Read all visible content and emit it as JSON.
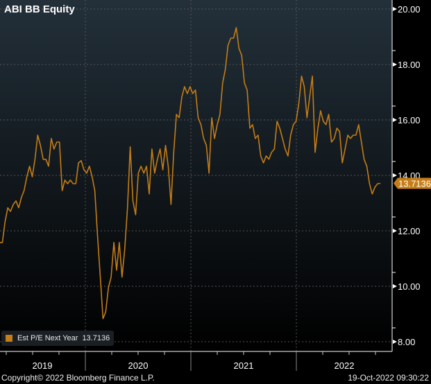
{
  "chart_data": {
    "type": "line",
    "title": "ABI BB Equity",
    "ylim": [
      8,
      20
    ],
    "yticks": [
      "8.00",
      "10.00",
      "12.00",
      "14.00",
      "16.00",
      "18.00",
      "20.00"
    ],
    "xticks": [
      "2019",
      "2020",
      "2021",
      "2022"
    ],
    "start_date": "2019-03-01",
    "end_date": "2022-10-19",
    "grid": true,
    "legend_position": "bottom-left",
    "series": [
      {
        "name": "Est P/E Next Year",
        "last_value_label": "13.7136",
        "color": "#c47d17",
        "values": [
          10.58,
          11.58,
          11.58,
          12.33,
          12.83,
          12.7,
          12.95,
          13.08,
          12.83,
          13.2,
          13.45,
          13.95,
          14.33,
          13.95,
          14.58,
          15.45,
          15.08,
          14.58,
          14.58,
          14.33,
          15.33,
          14.95,
          15.2,
          15.2,
          13.45,
          13.83,
          13.7,
          13.83,
          13.7,
          13.7,
          14.45,
          14.53,
          14.2,
          14.08,
          14.33,
          13.95,
          13.45,
          11.83,
          10.33,
          8.83,
          9.08,
          9.95,
          10.33,
          11.58,
          10.58,
          11.58,
          10.33,
          11.33,
          12.83,
          15.03,
          13.08,
          12.58,
          14.08,
          14.33,
          14.08,
          14.33,
          13.33,
          14.95,
          14.08,
          14.58,
          14.95,
          14.2,
          15.08,
          14.33,
          12.95,
          14.83,
          16.2,
          16.08,
          16.83,
          17.2,
          16.95,
          17.2,
          16.95,
          17.08,
          16.08,
          15.83,
          15.33,
          15.08,
          14.08,
          16.08,
          15.33,
          15.83,
          16.2,
          17.33,
          17.83,
          18.7,
          18.95,
          18.95,
          19.33,
          18.58,
          18.33,
          17.33,
          17.08,
          15.7,
          15.83,
          15.33,
          15.45,
          14.7,
          14.45,
          14.7,
          14.58,
          14.83,
          14.95,
          15.95,
          15.7,
          15.33,
          14.95,
          14.7,
          15.45,
          15.83,
          15.95,
          16.58,
          17.58,
          17.2,
          16.08,
          16.83,
          17.58,
          14.83,
          15.7,
          16.33,
          15.95,
          15.83,
          16.2,
          15.2,
          15.33,
          15.7,
          15.58,
          14.45,
          14.95,
          15.45,
          15.33,
          15.45,
          15.45,
          15.83,
          15.2,
          14.58,
          14.33,
          13.7,
          13.33,
          13.58,
          13.7,
          13.7136
        ]
      }
    ]
  },
  "footer": {
    "copyright": "Copyright© 2022 Bloomberg Finance L.P.",
    "timestamp": "19-Oct-2022 09:30:22"
  }
}
